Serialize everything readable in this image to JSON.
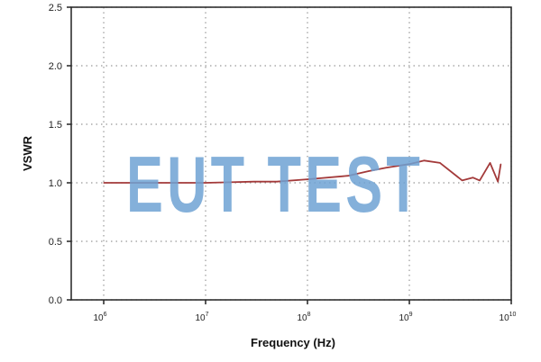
{
  "chart_data": {
    "type": "line",
    "xlabel": "Frequency (Hz)",
    "ylabel": "VSWR",
    "xscale": "log",
    "xlim": [
      480000,
      10000000000
    ],
    "ylim": [
      0,
      2.5
    ],
    "grid": true,
    "xticks": [
      {
        "base": "10",
        "exp": "6",
        "value": 1000000.0
      },
      {
        "base": "10",
        "exp": "7",
        "value": 10000000.0
      },
      {
        "base": "10",
        "exp": "8",
        "value": 100000000.0
      },
      {
        "base": "10",
        "exp": "9",
        "value": 1000000000.0
      },
      {
        "base": "10",
        "exp": "10",
        "value": 10000000000.0
      }
    ],
    "yticks": [
      "0.0",
      "0.5",
      "1.0",
      "1.5",
      "2.0",
      "2.5"
    ],
    "series": [
      {
        "color": "#a33a3a",
        "x": [
          1000000.0,
          10000000.0,
          30000000.0,
          50000000.0,
          100000000.0,
          250000000.0,
          400000000.0,
          600000000.0,
          1000000000.0,
          1400000000.0,
          2000000000.0,
          3300000000.0,
          4200000000.0,
          4900000000.0,
          6200000000.0,
          7400000000.0,
          7900000000.0
        ],
        "y": [
          1.0,
          1.0,
          1.01,
          1.01,
          1.03,
          1.06,
          1.1,
          1.13,
          1.16,
          1.19,
          1.17,
          1.02,
          1.045,
          1.02,
          1.17,
          1.01,
          1.16
        ]
      }
    ]
  },
  "watermark": "EUT TEST",
  "colors": {
    "watermark": "#6ea2d4",
    "line": "#a33a3a"
  }
}
